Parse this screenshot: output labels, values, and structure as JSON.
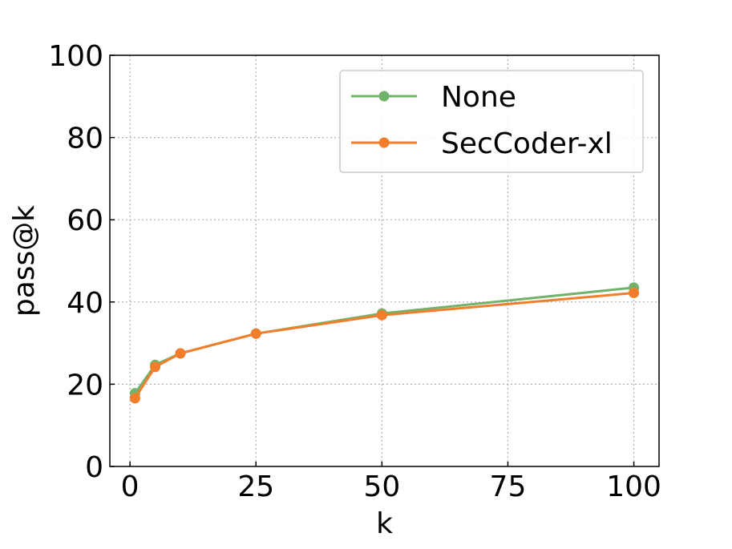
{
  "chart_data": {
    "type": "line",
    "xlabel": "k",
    "ylabel": "pass@k",
    "xlim": [
      -4,
      105
    ],
    "ylim": [
      0,
      100
    ],
    "xticks": [
      0,
      25,
      50,
      75,
      100
    ],
    "yticks": [
      0,
      20,
      40,
      60,
      80,
      100
    ],
    "grid": true,
    "legend_position": "top-right",
    "x": [
      1,
      5,
      10,
      25,
      50,
      100
    ],
    "series": [
      {
        "name": "None",
        "color": "#72b26a",
        "values": [
          17.8,
          24.7,
          27.5,
          32.3,
          37.2,
          43.5
        ]
      },
      {
        "name": "SecCoder-xl",
        "color": "#f27d2a",
        "values": [
          16.6,
          24.2,
          27.5,
          32.3,
          36.8,
          42.2
        ]
      }
    ]
  }
}
